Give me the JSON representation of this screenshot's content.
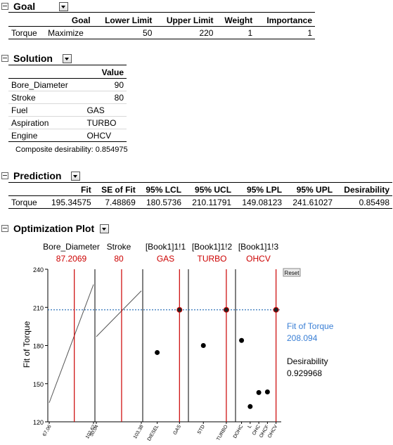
{
  "goal": {
    "title": "Goal",
    "columns": [
      "",
      "Goal",
      "Lower Limit",
      "Upper Limit",
      "Weight",
      "Importance"
    ],
    "rows": [
      [
        "Torque",
        "Maximize",
        "50",
        "220",
        "1",
        "1"
      ]
    ]
  },
  "solution": {
    "title": "Solution",
    "value_header": "Value",
    "rows": [
      [
        "Bore_Diameter",
        "90"
      ],
      [
        "Stroke",
        "80"
      ],
      [
        "Fuel",
        "GAS"
      ],
      [
        "Aspiration",
        "TURBO"
      ],
      [
        "Engine",
        "OHCV"
      ]
    ],
    "composite": "Composite desirability: 0.854975"
  },
  "prediction": {
    "title": "Prediction",
    "columns": [
      "",
      "Fit",
      "SE of Fit",
      "95% LCL",
      "95% UCL",
      "95% LPL",
      "95% UPL",
      "Desirability"
    ],
    "rows": [
      [
        "Torque",
        "195.34575",
        "7.48869",
        "180.5736",
        "210.11791",
        "149.08123",
        "241.61027",
        "0.85498"
      ]
    ]
  },
  "plot": {
    "title": "Optimization Plot",
    "reset_label": "Reset",
    "y_axis_label": "Fit of Torque",
    "fit_label": "Fit of Torque",
    "fit_value": "208.094",
    "desirability_label": "Desirability",
    "desirability_value": "0.929968",
    "colors": {
      "current": "#cc0000",
      "fit": "#3a7fd5",
      "reference": "#0055aa"
    },
    "factors": [
      {
        "name": "Bore_Diameter",
        "current": "87.2069"
      },
      {
        "name": "Stroke",
        "current": "80"
      },
      {
        "name": "[Book1]1!1",
        "current": "GAS"
      },
      {
        "name": "[Book1]1!2",
        "current": "TURBO"
      },
      {
        "name": "[Book1]1!3",
        "current": "OHCV"
      }
    ]
  },
  "chart_data": {
    "type": "line",
    "title": "Optimization Plot",
    "ylabel": "Fit of Torque",
    "ylim": [
      120,
      240
    ],
    "yticks": [
      120,
      150,
      180,
      210,
      240
    ],
    "reference_y": 208.094,
    "panels": [
      {
        "factor": "Bore_Diameter",
        "kind": "continuous",
        "range": [
          67.06,
          102.62
        ],
        "tick_labels": [
          "67.06",
          "102.62"
        ],
        "current": 87.2069,
        "points": [
          [
            67.06,
            135
          ],
          [
            102.62,
            228
          ]
        ]
      },
      {
        "factor": "Stroke",
        "kind": "continuous",
        "range": [
          50.04,
          103.38
        ],
        "tick_labels": [
          "50.04",
          "103.38"
        ],
        "current": 80,
        "points": [
          [
            50.04,
            187
          ],
          [
            103.38,
            223
          ]
        ]
      },
      {
        "factor": "[Book1]1!1",
        "kind": "categorical",
        "categories": [
          "DIESEL",
          "GAS"
        ],
        "values": [
          174.5,
          208.094
        ],
        "current": "GAS"
      },
      {
        "factor": "[Book1]1!2",
        "kind": "categorical",
        "categories": [
          "STD",
          "TURBO"
        ],
        "values": [
          180,
          208.094
        ],
        "current": "TURBO"
      },
      {
        "factor": "[Book1]1!3",
        "kind": "categorical",
        "categories": [
          "DOHC",
          "L",
          "OHC",
          "OHCF",
          "OHCV"
        ],
        "values": [
          184,
          132,
          143,
          143.5,
          208.094
        ],
        "current": "OHCV"
      }
    ]
  }
}
